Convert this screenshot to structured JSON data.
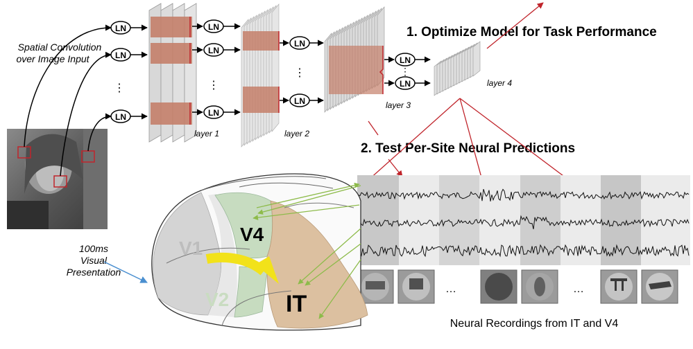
{
  "input": {
    "caption_line1": "Spatial Convolution",
    "caption_line2": "over Image Input"
  },
  "ln_label": "LN",
  "layers": {
    "layer1": "layer 1",
    "layer2": "layer 2",
    "layer3": "layer 3",
    "layer4": "layer 4"
  },
  "steps": {
    "step1": "1. Optimize Model for Task Performance",
    "step2": "2. Test Per-Site Neural Predictions"
  },
  "presentation": {
    "line1": "100ms",
    "line2": "Visual",
    "line3": "Presentation"
  },
  "brain_areas": {
    "v1": "V1",
    "v2": "V2",
    "v4": "V4",
    "it": "IT"
  },
  "ellipsis": "…",
  "vdots": "⋮",
  "recordings_caption": "Neural Recordings from IT and V4",
  "colors": {
    "arrow_red": "#c0242b",
    "feature_block": "#c47f6a",
    "projection_green": "#8dbb4a",
    "yellow_arrow": "#f2e21a",
    "it_fill": "#dcc0a0",
    "v4_fill": "#c7dcc0",
    "blue_arrow": "#4a8fd0"
  }
}
